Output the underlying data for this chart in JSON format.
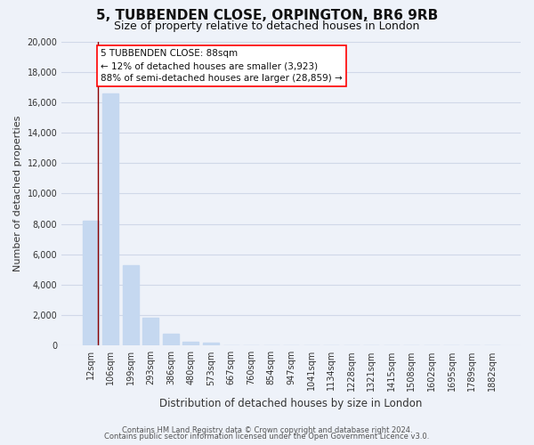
{
  "title": "5, TUBBENDEN CLOSE, ORPINGTON, BR6 9RB",
  "subtitle": "Size of property relative to detached houses in London",
  "xlabel": "Distribution of detached houses by size in London",
  "ylabel": "Number of detached properties",
  "bar_labels": [
    "12sqm",
    "106sqm",
    "199sqm",
    "293sqm",
    "386sqm",
    "480sqm",
    "573sqm",
    "667sqm",
    "760sqm",
    "854sqm",
    "947sqm",
    "1041sqm",
    "1134sqm",
    "1228sqm",
    "1321sqm",
    "1415sqm",
    "1508sqm",
    "1602sqm",
    "1695sqm",
    "1789sqm",
    "1882sqm"
  ],
  "bar_values": [
    8200,
    16600,
    5300,
    1850,
    780,
    270,
    200,
    0,
    0,
    0,
    0,
    0,
    0,
    0,
    0,
    0,
    0,
    0,
    0,
    0,
    0
  ],
  "bar_color": "#c5d8f0",
  "annotation_box_text": "5 TUBBENDEN CLOSE: 88sqm\n← 12% of detached houses are smaller (3,923)\n88% of semi-detached houses are larger (28,859) →",
  "ylim": [
    0,
    20000
  ],
  "yticks": [
    0,
    2000,
    4000,
    6000,
    8000,
    10000,
    12000,
    14000,
    16000,
    18000,
    20000
  ],
  "footer_line1": "Contains HM Land Registry data © Crown copyright and database right 2024.",
  "footer_line2": "Contains public sector information licensed under the Open Government Licence v3.0.",
  "background_color": "#eef2f9",
  "grid_color": "#d0d8e8",
  "title_fontsize": 11,
  "subtitle_fontsize": 9,
  "tick_fontsize": 7,
  "ylabel_fontsize": 8,
  "xlabel_fontsize": 8.5,
  "footer_fontsize": 6,
  "annotation_fontsize": 7.5
}
